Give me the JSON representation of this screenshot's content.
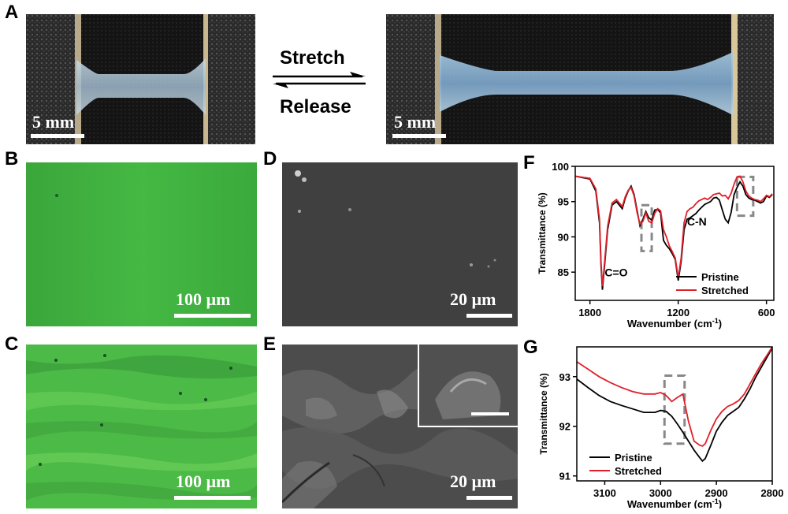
{
  "panels": {
    "A": {
      "letter": "A",
      "stretch_label": "Stretch",
      "release_label": "Release",
      "left_scale": "5 mm",
      "right_scale": "5 mm"
    },
    "B": {
      "letter": "B",
      "scale": "100 µm"
    },
    "C": {
      "letter": "C",
      "scale": "100 µm"
    },
    "D": {
      "letter": "D",
      "scale": "20 µm"
    },
    "E": {
      "letter": "E",
      "scale": "20 µm"
    },
    "F": {
      "letter": "F"
    },
    "G": {
      "letter": "G"
    }
  },
  "colors": {
    "pristine": "#000000",
    "stretched": "#e0202a",
    "green_dark": "#2f9a38",
    "green_light": "#7fd85a",
    "sem": "#3c3c3c"
  },
  "chart_data": [
    {
      "panel": "F",
      "type": "line",
      "xlabel": "Wavenumber (cm-1)",
      "ylabel": "Transmittance (%)",
      "xlim": [
        1900,
        550
      ],
      "ylim": [
        81,
        100
      ],
      "xticks": [
        "1800",
        "1200",
        "600"
      ],
      "yticks": [
        "85",
        "90",
        "95",
        "100"
      ],
      "annotations": [
        "C=O",
        "C-N"
      ],
      "legend": [
        "Pristine",
        "Stretched"
      ],
      "legend_position": "bottom-right",
      "series": [
        {
          "name": "Pristine",
          "x": [
            1900,
            1800,
            1760,
            1735,
            1725,
            1715,
            1700,
            1680,
            1650,
            1620,
            1580,
            1560,
            1540,
            1520,
            1500,
            1480,
            1460,
            1440,
            1420,
            1400,
            1380,
            1360,
            1340,
            1320,
            1300,
            1280,
            1260,
            1240,
            1220,
            1200,
            1180,
            1160,
            1140,
            1120,
            1100,
            1080,
            1060,
            1040,
            1020,
            1000,
            980,
            960,
            940,
            920,
            900,
            880,
            860,
            840,
            820,
            800,
            780,
            760,
            740,
            720,
            700,
            680,
            660,
            640,
            620,
            600,
            580,
            560
          ],
          "y": [
            98.6,
            98.2,
            96.5,
            92.0,
            86.0,
            82.5,
            86.0,
            91.0,
            94.5,
            95.0,
            94.0,
            95.5,
            96.5,
            97.2,
            96.0,
            93.8,
            91.6,
            92.5,
            93.6,
            92.7,
            92.4,
            93.8,
            93.9,
            93.4,
            89.5,
            88.8,
            88.3,
            87.6,
            86.8,
            83.8,
            86.5,
            91.0,
            92.5,
            92.7,
            93.0,
            93.3,
            93.8,
            94.2,
            94.6,
            94.8,
            95.0,
            95.5,
            95.6,
            95.2,
            93.8,
            92.5,
            92.0,
            93.5,
            96.0,
            97.0,
            97.8,
            97.2,
            96.0,
            95.5,
            95.3,
            95.2,
            95.0,
            94.8,
            95.0,
            95.8,
            95.6,
            96.0
          ]
        },
        {
          "name": "Stretched",
          "x": [
            1900,
            1800,
            1760,
            1735,
            1725,
            1715,
            1700,
            1680,
            1650,
            1620,
            1580,
            1560,
            1540,
            1520,
            1500,
            1480,
            1460,
            1440,
            1420,
            1400,
            1380,
            1360,
            1340,
            1320,
            1300,
            1280,
            1260,
            1240,
            1220,
            1200,
            1180,
            1160,
            1140,
            1120,
            1100,
            1080,
            1060,
            1040,
            1020,
            1000,
            980,
            960,
            940,
            920,
            900,
            880,
            860,
            840,
            820,
            800,
            780,
            760,
            740,
            720,
            700,
            680,
            660,
            640,
            620,
            600,
            580,
            560
          ],
          "y": [
            98.6,
            98.3,
            96.8,
            92.5,
            86.5,
            83.0,
            86.5,
            91.5,
            94.8,
            95.3,
            94.3,
            95.7,
            96.6,
            97.0,
            95.8,
            93.5,
            91.8,
            92.2,
            93.4,
            92.2,
            92.0,
            93.3,
            94.0,
            93.7,
            91.0,
            90.0,
            88.7,
            87.9,
            87.0,
            84.2,
            87.0,
            92.0,
            93.6,
            94.0,
            94.2,
            94.7,
            95.1,
            95.3,
            95.5,
            95.3,
            95.6,
            96.0,
            96.1,
            96.2,
            95.8,
            95.9,
            95.4,
            96.2,
            97.5,
            98.5,
            98.6,
            97.8,
            96.5,
            95.8,
            95.5,
            95.3,
            95.2,
            95.0,
            95.4,
            95.9,
            95.7,
            96.1
          ]
        }
      ]
    },
    {
      "panel": "G",
      "type": "line",
      "xlabel": "Wavenumber (cm-1)",
      "ylabel": "Transmittance (%)",
      "xlim": [
        3150,
        2800
      ],
      "ylim": [
        90.9,
        93.6
      ],
      "xticks": [
        "3100",
        "3000",
        "2900",
        "2800"
      ],
      "yticks": [
        "91",
        "92",
        "93"
      ],
      "legend": [
        "Pristine",
        "Stretched"
      ],
      "legend_position": "bottom-left",
      "series": [
        {
          "name": "Pristine",
          "x": [
            3150,
            3130,
            3110,
            3090,
            3070,
            3050,
            3030,
            3010,
            3000,
            2990,
            2980,
            2970,
            2960,
            2950,
            2940,
            2930,
            2925,
            2920,
            2910,
            2900,
            2890,
            2880,
            2870,
            2860,
            2850,
            2840,
            2830,
            2820,
            2810,
            2800
          ],
          "y": [
            92.95,
            92.78,
            92.62,
            92.5,
            92.42,
            92.35,
            92.28,
            92.28,
            92.32,
            92.3,
            92.2,
            92.05,
            91.88,
            91.7,
            91.52,
            91.37,
            91.3,
            91.35,
            91.62,
            91.9,
            92.08,
            92.22,
            92.3,
            92.38,
            92.55,
            92.75,
            92.98,
            93.18,
            93.38,
            93.58
          ]
        },
        {
          "name": "Stretched",
          "x": [
            3150,
            3130,
            3110,
            3090,
            3070,
            3050,
            3030,
            3010,
            3000,
            2990,
            2980,
            2970,
            2960,
            2950,
            2940,
            2930,
            2925,
            2920,
            2910,
            2900,
            2890,
            2880,
            2870,
            2860,
            2850,
            2840,
            2830,
            2820,
            2810,
            2800
          ],
          "y": [
            93.3,
            93.15,
            93.0,
            92.88,
            92.78,
            92.7,
            92.65,
            92.65,
            92.68,
            92.62,
            92.5,
            92.58,
            92.65,
            92.1,
            91.7,
            91.62,
            91.6,
            91.65,
            91.92,
            92.15,
            92.3,
            92.4,
            92.45,
            92.52,
            92.65,
            92.85,
            93.05,
            93.25,
            93.42,
            93.6
          ]
        }
      ]
    }
  ]
}
